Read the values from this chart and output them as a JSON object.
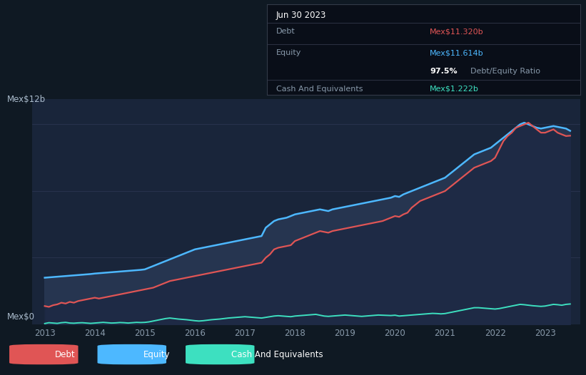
{
  "bg_color": "#0f1923",
  "plot_bg_color": "#19253a",
  "ylabel_top": "Mex$12b",
  "ylabel_bottom": "Mex$0",
  "x_ticks": [
    "2013",
    "2014",
    "2015",
    "2016",
    "2017",
    "2018",
    "2019",
    "2020",
    "2021",
    "2022",
    "2023"
  ],
  "debt_color": "#e05555",
  "equity_color": "#4db8ff",
  "cash_color": "#3de0c0",
  "fill_equity_color": "#1e2f55",
  "fill_debt_color": "#4a1a2a",
  "tooltip_bg": "#080f18",
  "tooltip_title": "Jun 30 2023",
  "tooltip_debt_label": "Debt",
  "tooltip_debt_value": "Mex$11.320b",
  "tooltip_equity_label": "Equity",
  "tooltip_equity_value": "Mex$11.614b",
  "tooltip_ratio_bold": "97.5%",
  "tooltip_ratio_text": " Debt/Equity Ratio",
  "tooltip_cash_label": "Cash And Equivalents",
  "tooltip_cash_value": "Mex$1.222b",
  "legend_debt": "Debt",
  "legend_equity": "Equity",
  "legend_cash": "Cash And Equivalents",
  "ylim": [
    0,
    13.5
  ],
  "years": [
    2013.0,
    2013.083,
    2013.167,
    2013.25,
    2013.333,
    2013.417,
    2013.5,
    2013.583,
    2013.667,
    2013.75,
    2013.833,
    2013.917,
    2014.0,
    2014.083,
    2014.167,
    2014.25,
    2014.333,
    2014.417,
    2014.5,
    2014.583,
    2014.667,
    2014.75,
    2014.833,
    2014.917,
    2015.0,
    2015.083,
    2015.167,
    2015.25,
    2015.333,
    2015.417,
    2015.5,
    2015.583,
    2015.667,
    2015.75,
    2015.833,
    2015.917,
    2016.0,
    2016.083,
    2016.167,
    2016.25,
    2016.333,
    2016.417,
    2016.5,
    2016.583,
    2016.667,
    2016.75,
    2016.833,
    2016.917,
    2017.0,
    2017.083,
    2017.167,
    2017.25,
    2017.333,
    2017.417,
    2017.5,
    2017.583,
    2017.667,
    2017.75,
    2017.833,
    2017.917,
    2018.0,
    2018.083,
    2018.167,
    2018.25,
    2018.333,
    2018.417,
    2018.5,
    2018.583,
    2018.667,
    2018.75,
    2018.833,
    2018.917,
    2019.0,
    2019.083,
    2019.167,
    2019.25,
    2019.333,
    2019.417,
    2019.5,
    2019.583,
    2019.667,
    2019.75,
    2019.833,
    2019.917,
    2020.0,
    2020.083,
    2020.167,
    2020.25,
    2020.333,
    2020.417,
    2020.5,
    2020.583,
    2020.667,
    2020.75,
    2020.833,
    2020.917,
    2021.0,
    2021.083,
    2021.167,
    2021.25,
    2021.333,
    2021.417,
    2021.5,
    2021.583,
    2021.667,
    2021.75,
    2021.833,
    2021.917,
    2022.0,
    2022.083,
    2022.167,
    2022.25,
    2022.333,
    2022.417,
    2022.5,
    2022.583,
    2022.667,
    2022.75,
    2022.833,
    2022.917,
    2023.0,
    2023.083,
    2023.167,
    2023.25,
    2023.333,
    2023.417,
    2023.5
  ],
  "debt": [
    1.1,
    1.05,
    1.15,
    1.2,
    1.3,
    1.25,
    1.35,
    1.3,
    1.4,
    1.45,
    1.5,
    1.55,
    1.6,
    1.55,
    1.6,
    1.65,
    1.7,
    1.75,
    1.8,
    1.85,
    1.9,
    1.95,
    2.0,
    2.05,
    2.1,
    2.15,
    2.2,
    2.3,
    2.4,
    2.5,
    2.6,
    2.65,
    2.7,
    2.75,
    2.8,
    2.85,
    2.9,
    2.95,
    3.0,
    3.05,
    3.1,
    3.15,
    3.2,
    3.25,
    3.3,
    3.35,
    3.4,
    3.45,
    3.5,
    3.55,
    3.6,
    3.65,
    3.7,
    4.0,
    4.2,
    4.5,
    4.6,
    4.65,
    4.7,
    4.75,
    5.0,
    5.1,
    5.2,
    5.3,
    5.4,
    5.5,
    5.6,
    5.55,
    5.5,
    5.6,
    5.65,
    5.7,
    5.75,
    5.8,
    5.85,
    5.9,
    5.95,
    6.0,
    6.05,
    6.1,
    6.15,
    6.2,
    6.3,
    6.4,
    6.5,
    6.45,
    6.6,
    6.7,
    7.0,
    7.2,
    7.4,
    7.5,
    7.6,
    7.7,
    7.8,
    7.9,
    8.0,
    8.2,
    8.4,
    8.6,
    8.8,
    9.0,
    9.2,
    9.4,
    9.5,
    9.6,
    9.7,
    9.8,
    10.0,
    10.5,
    11.0,
    11.3,
    11.5,
    11.8,
    11.9,
    12.0,
    12.1,
    11.9,
    11.7,
    11.5,
    11.5,
    11.6,
    11.7,
    11.5,
    11.4,
    11.3,
    11.32
  ],
  "equity": [
    2.8,
    2.82,
    2.84,
    2.86,
    2.88,
    2.9,
    2.92,
    2.94,
    2.96,
    2.98,
    3.0,
    3.02,
    3.05,
    3.07,
    3.09,
    3.11,
    3.13,
    3.15,
    3.17,
    3.19,
    3.21,
    3.23,
    3.25,
    3.27,
    3.3,
    3.4,
    3.5,
    3.6,
    3.7,
    3.8,
    3.9,
    4.0,
    4.1,
    4.2,
    4.3,
    4.4,
    4.5,
    4.55,
    4.6,
    4.65,
    4.7,
    4.75,
    4.8,
    4.85,
    4.9,
    4.95,
    5.0,
    5.05,
    5.1,
    5.15,
    5.2,
    5.25,
    5.3,
    5.8,
    6.0,
    6.2,
    6.3,
    6.35,
    6.4,
    6.5,
    6.6,
    6.65,
    6.7,
    6.75,
    6.8,
    6.85,
    6.9,
    6.85,
    6.8,
    6.9,
    6.95,
    7.0,
    7.05,
    7.1,
    7.15,
    7.2,
    7.25,
    7.3,
    7.35,
    7.4,
    7.45,
    7.5,
    7.55,
    7.6,
    7.7,
    7.65,
    7.8,
    7.9,
    8.0,
    8.1,
    8.2,
    8.3,
    8.4,
    8.5,
    8.6,
    8.7,
    8.8,
    9.0,
    9.2,
    9.4,
    9.6,
    9.8,
    10.0,
    10.2,
    10.3,
    10.4,
    10.5,
    10.6,
    10.8,
    11.0,
    11.2,
    11.4,
    11.6,
    11.8,
    12.0,
    12.1,
    12.0,
    11.9,
    11.8,
    11.75,
    11.8,
    11.85,
    11.9,
    11.85,
    11.8,
    11.75,
    11.614
  ],
  "cash": [
    0.05,
    0.1,
    0.08,
    0.06,
    0.1,
    0.12,
    0.08,
    0.07,
    0.09,
    0.1,
    0.08,
    0.06,
    0.08,
    0.1,
    0.12,
    0.1,
    0.08,
    0.09,
    0.11,
    0.1,
    0.08,
    0.1,
    0.12,
    0.11,
    0.12,
    0.15,
    0.2,
    0.25,
    0.3,
    0.35,
    0.38,
    0.35,
    0.32,
    0.3,
    0.28,
    0.25,
    0.22,
    0.2,
    0.22,
    0.25,
    0.28,
    0.3,
    0.32,
    0.35,
    0.38,
    0.4,
    0.42,
    0.44,
    0.46,
    0.44,
    0.42,
    0.4,
    0.38,
    0.42,
    0.46,
    0.5,
    0.52,
    0.5,
    0.48,
    0.46,
    0.5,
    0.52,
    0.54,
    0.56,
    0.58,
    0.6,
    0.55,
    0.5,
    0.48,
    0.5,
    0.52,
    0.54,
    0.56,
    0.54,
    0.52,
    0.5,
    0.48,
    0.5,
    0.52,
    0.54,
    0.56,
    0.55,
    0.54,
    0.53,
    0.55,
    0.5,
    0.52,
    0.54,
    0.56,
    0.58,
    0.6,
    0.62,
    0.64,
    0.66,
    0.65,
    0.63,
    0.65,
    0.7,
    0.75,
    0.8,
    0.85,
    0.9,
    0.95,
    1.0,
    1.0,
    0.98,
    0.96,
    0.94,
    0.92,
    0.95,
    1.0,
    1.05,
    1.1,
    1.15,
    1.2,
    1.18,
    1.15,
    1.12,
    1.1,
    1.08,
    1.1,
    1.15,
    1.2,
    1.18,
    1.15,
    1.2,
    1.222
  ]
}
